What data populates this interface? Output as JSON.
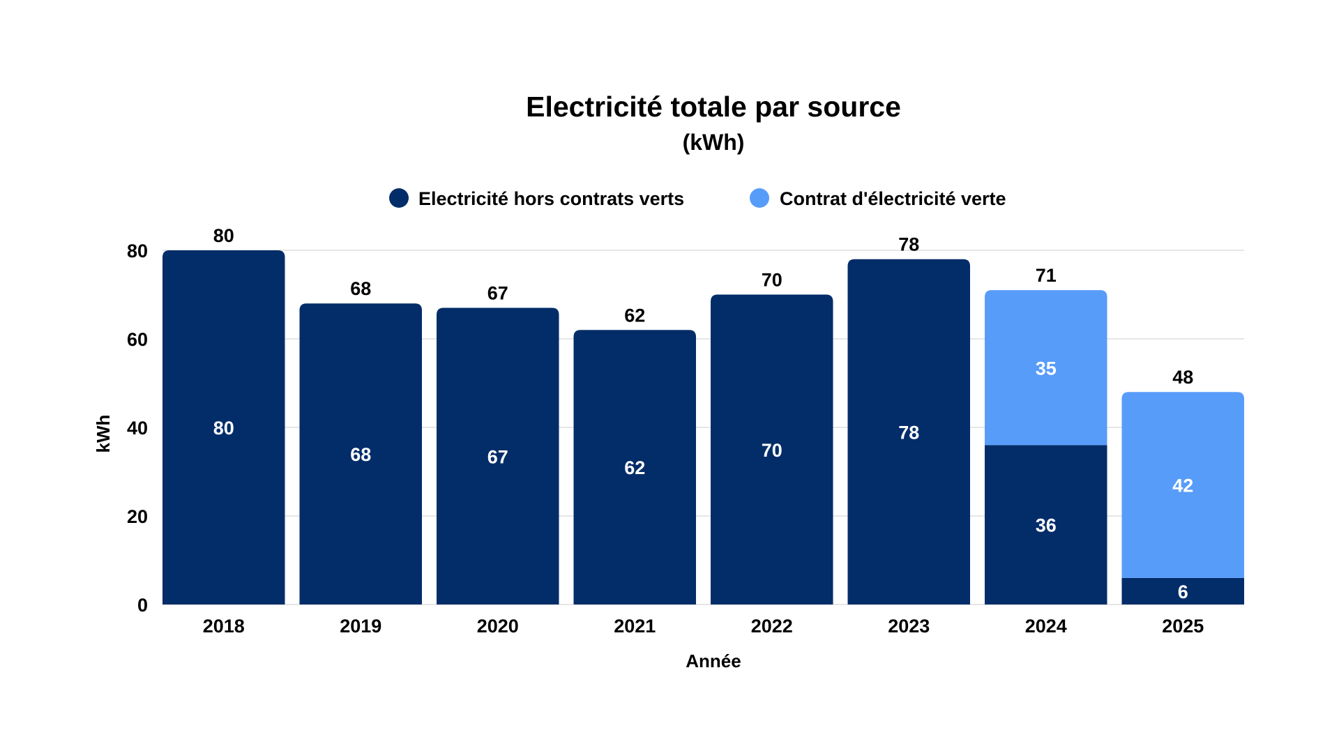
{
  "colors": {
    "series_dark": "#032d69",
    "series_light": "#589cfa",
    "grid": "#dddddd",
    "text": "#000000",
    "inner_text": "#ffffff"
  },
  "chart_data": {
    "type": "bar",
    "stacked": true,
    "title": "Electricité totale par source",
    "subtitle": "(kWh)",
    "xlabel": "Année",
    "ylabel": "kWh",
    "ylim": [
      0,
      80
    ],
    "yticks": [
      0,
      20,
      40,
      60,
      80
    ],
    "grid": true,
    "legend_position": "top-center",
    "categories": [
      "2018",
      "2019",
      "2020",
      "2021",
      "2022",
      "2023",
      "2024",
      "2025"
    ],
    "series": [
      {
        "name": "Electricité hors contrats verts",
        "color_key": "series_dark",
        "values": [
          80,
          68,
          67,
          62,
          70,
          78,
          36,
          6
        ]
      },
      {
        "name": "Contrat d'électricité verte",
        "color_key": "series_light",
        "values": [
          0,
          0,
          0,
          0,
          0,
          0,
          35,
          42
        ]
      }
    ],
    "totals": [
      80,
      68,
      67,
      62,
      70,
      78,
      71,
      48
    ]
  }
}
